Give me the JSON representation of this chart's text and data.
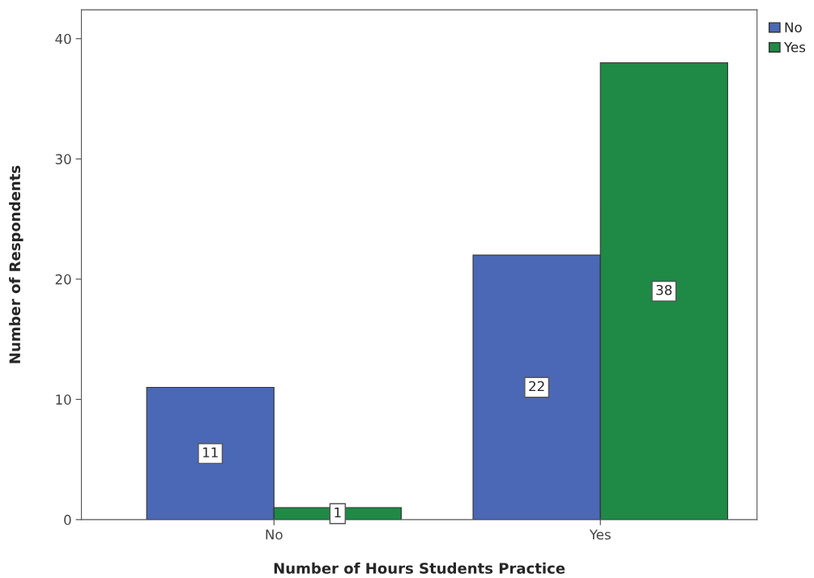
{
  "chart_data": {
    "type": "bar",
    "xlabel": "Number of Hours Students Practice",
    "ylabel": "Number of Respondents",
    "categories": [
      "No",
      "Yes"
    ],
    "series": [
      {
        "name": "No",
        "color": "#4a68b5",
        "values": [
          11,
          22
        ]
      },
      {
        "name": "Yes",
        "color": "#1e8a45",
        "values": [
          1,
          38
        ]
      }
    ],
    "ylim": [
      0,
      42.4
    ],
    "yticks": [
      0,
      10,
      20,
      30,
      40
    ],
    "data_labels": true,
    "legend": "top right",
    "grid": false
  }
}
